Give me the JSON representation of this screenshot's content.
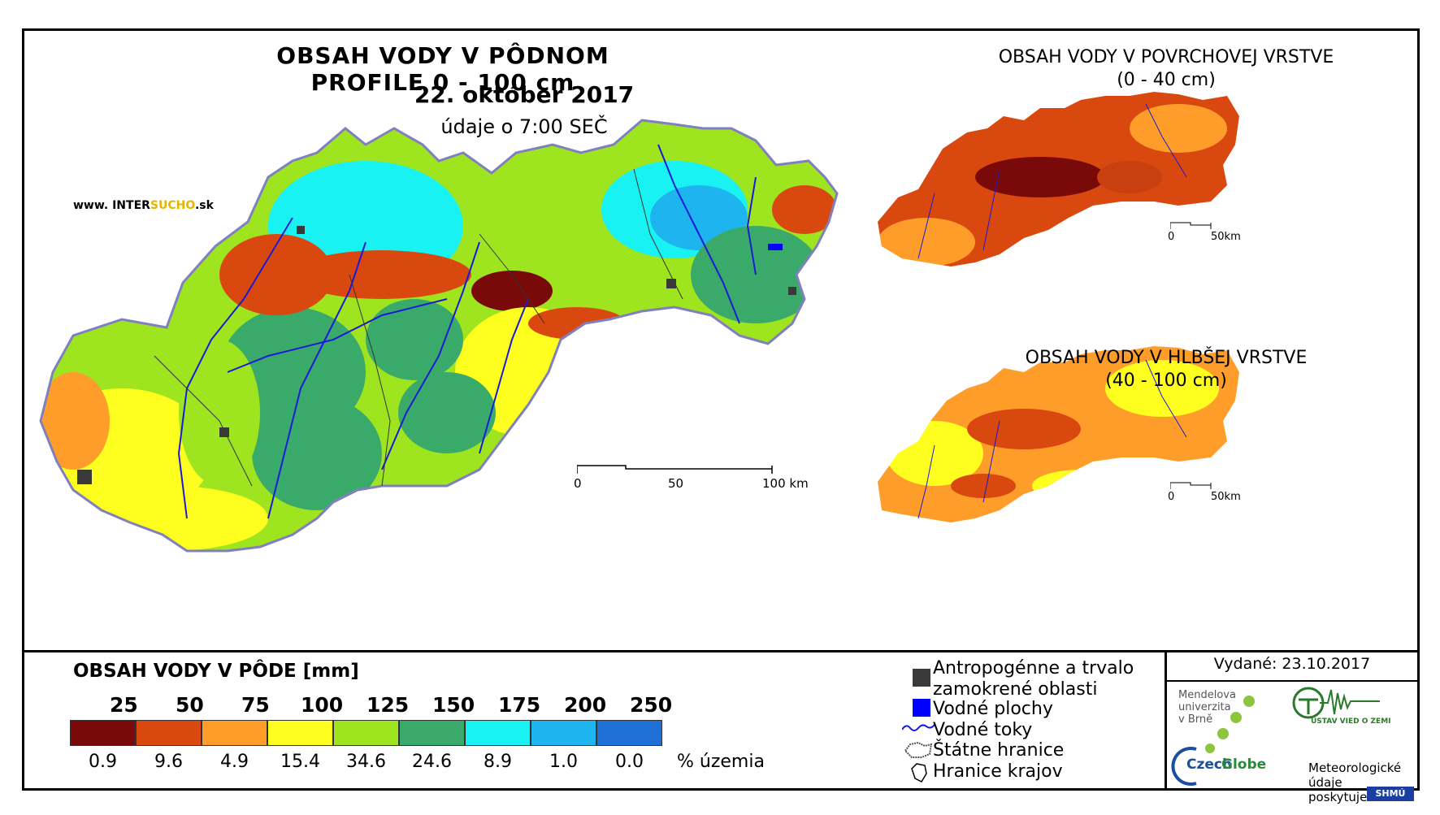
{
  "main_map": {
    "title": "OBSAH VODY V PÔDNOM PROFILE 0 - 100 cm",
    "date": "22. október 2017",
    "time_note": "údaje o 7:00 SEČ",
    "website_prefix": "www. INTER",
    "website_highlight": "SUCHO",
    "website_suffix": ".sk",
    "scale": {
      "labels": [
        "0",
        "50",
        "100 km"
      ]
    }
  },
  "inset_top": {
    "title": "OBSAH VODY V POVRCHOVEJ VRSTVE",
    "subtitle": "(0 - 40 cm)",
    "scale": {
      "labels": [
        "0",
        "50km"
      ]
    }
  },
  "inset_bottom": {
    "title": "OBSAH VODY V HLBŠEJ VRSTVE",
    "subtitle": "(40 - 100 cm)",
    "scale": {
      "labels": [
        "0",
        "50km"
      ]
    }
  },
  "legend": {
    "title": "OBSAH VODY V PÔDE [mm]",
    "thresholds": [
      "25",
      "50",
      "75",
      "100",
      "125",
      "150",
      "175",
      "200",
      "250"
    ],
    "classes": [
      {
        "color": "#7a0a0a",
        "percent": "0.9"
      },
      {
        "color": "#d9480f",
        "percent": "9.6"
      },
      {
        "color": "#ff9d2a",
        "percent": "4.9"
      },
      {
        "color": "#ffff1f",
        "percent": "15.4"
      },
      {
        "color": "#9ee520",
        "percent": "34.6"
      },
      {
        "color": "#3aaa6a",
        "percent": "24.6"
      },
      {
        "color": "#18f2f2",
        "percent": "8.9"
      },
      {
        "color": "#1db4f0",
        "percent": "1.0"
      },
      {
        "color": "#1e6fd6",
        "percent": "0.0"
      }
    ],
    "percent_unit": "% územia"
  },
  "map_key": {
    "urban_line1": "Antropogénne a trvalo",
    "urban_line2": "zamokrené oblasti",
    "water_bodies": "Vodné plochy",
    "rivers": "Vodné toky",
    "state_border": "Štátne hranice",
    "region_border": "Hranice krajov"
  },
  "issued": "Vydané: 23.10.2017",
  "logos": {
    "mendelu_line1": "Mendelova",
    "mendelu_line2": "univerzita",
    "mendelu_line3": "v Brně",
    "czechglobe_czech": "Czech",
    "czechglobe_globe": "Globe",
    "uvgz": "ÚSTAV VIED O ZEMI",
    "meteo_line1": "Meteorologické",
    "meteo_line2": "údaje",
    "meteo_line3": "poskytuje:",
    "shmu": "SHMÚ"
  },
  "colors": {
    "river": "#1a1ad8",
    "urban": "#3a3a3a",
    "water": "#0000ff"
  }
}
